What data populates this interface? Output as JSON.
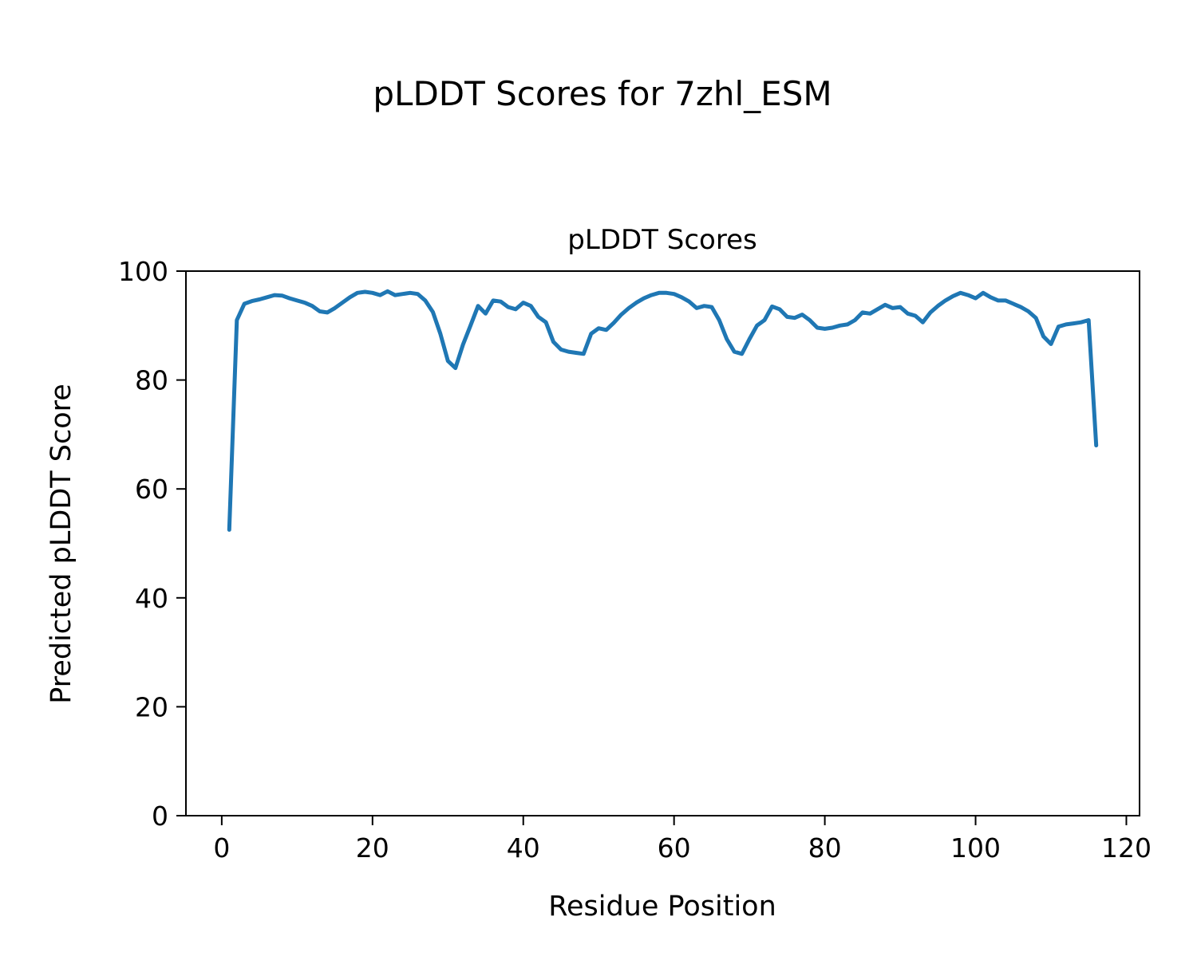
{
  "chart_data": {
    "type": "line",
    "suptitle": "pLDDT Scores for 7zhl_ESM",
    "title": "pLDDT Scores",
    "xlabel": "Residue Position",
    "ylabel": "Predicted pLDDT Score",
    "line_color": "#1f77b4",
    "grid": false,
    "legend": "none",
    "xlim": [
      -4.75,
      121.75
    ],
    "ylim": [
      0,
      100
    ],
    "xticks": [
      0,
      20,
      40,
      60,
      80,
      100,
      120
    ],
    "yticks": [
      0,
      20,
      40,
      60,
      80,
      100
    ],
    "x": [
      1,
      2,
      3,
      4,
      5,
      6,
      7,
      8,
      9,
      10,
      11,
      12,
      13,
      14,
      15,
      16,
      17,
      18,
      19,
      20,
      21,
      22,
      23,
      24,
      25,
      26,
      27,
      28,
      29,
      30,
      31,
      32,
      33,
      34,
      35,
      36,
      37,
      38,
      39,
      40,
      41,
      42,
      43,
      44,
      45,
      46,
      47,
      48,
      49,
      50,
      51,
      52,
      53,
      54,
      55,
      56,
      57,
      58,
      59,
      60,
      61,
      62,
      63,
      64,
      65,
      66,
      67,
      68,
      69,
      70,
      71,
      72,
      73,
      74,
      75,
      76,
      77,
      78,
      79,
      80,
      81,
      82,
      83,
      84,
      85,
      86,
      87,
      88,
      89,
      90,
      91,
      92,
      93,
      94,
      95,
      96,
      97,
      98,
      99,
      100,
      101,
      102,
      103,
      104,
      105,
      106,
      107,
      108,
      109,
      110,
      111,
      112,
      113,
      114,
      115,
      116
    ],
    "series": [
      {
        "name": "pLDDT",
        "values": [
          52.5,
          91.0,
          94.0,
          94.5,
          94.8,
          95.2,
          95.6,
          95.5,
          95.0,
          94.6,
          94.2,
          93.6,
          92.6,
          92.4,
          93.2,
          94.2,
          95.2,
          96.0,
          96.2,
          96.0,
          95.6,
          96.3,
          95.6,
          95.8,
          96.0,
          95.8,
          94.6,
          92.5,
          88.5,
          83.5,
          82.2,
          86.5,
          90.0,
          93.6,
          92.2,
          94.6,
          94.4,
          93.4,
          93.0,
          94.2,
          93.6,
          91.6,
          90.6,
          87.0,
          85.6,
          85.2,
          85.0,
          84.8,
          88.5,
          89.5,
          89.2,
          90.5,
          92.0,
          93.2,
          94.2,
          95.0,
          95.6,
          96.0,
          96.0,
          95.8,
          95.2,
          94.4,
          93.2,
          93.6,
          93.4,
          91.0,
          87.5,
          85.2,
          84.8,
          87.5,
          90.0,
          91.0,
          93.5,
          93.0,
          91.6,
          91.4,
          92.0,
          91.0,
          89.6,
          89.4,
          89.6,
          90.0,
          90.2,
          91.0,
          92.4,
          92.2,
          93.0,
          93.8,
          93.2,
          93.4,
          92.2,
          91.8,
          90.6,
          92.4,
          93.6,
          94.6,
          95.4,
          96.0,
          95.6,
          95.0,
          96.0,
          95.2,
          94.6,
          94.6,
          94.0,
          93.4,
          92.6,
          91.4,
          88.0,
          86.6,
          89.8,
          90.2,
          90.4,
          90.6,
          91.0,
          68.0
        ]
      }
    ]
  }
}
